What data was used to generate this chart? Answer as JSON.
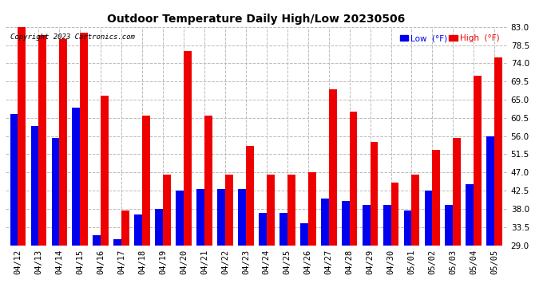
{
  "title": "Outdoor Temperature Daily High/Low 20230506",
  "copyright": "Copyright 2023 Cartronics.com",
  "legend_low": "Low  (°F)",
  "legend_high": "High  (°F)",
  "low_color": "#0000ee",
  "high_color": "#ee0000",
  "background_color": "#ffffff",
  "ymin": 29.0,
  "ymax": 83.0,
  "yticks": [
    29.0,
    33.5,
    38.0,
    42.5,
    47.0,
    51.5,
    56.0,
    60.5,
    65.0,
    69.5,
    74.0,
    78.5,
    83.0
  ],
  "grid_color": "#bbbbbb",
  "dates": [
    "04/12",
    "04/13",
    "04/14",
    "04/15",
    "04/16",
    "04/17",
    "04/18",
    "04/19",
    "04/20",
    "04/21",
    "04/22",
    "04/23",
    "04/24",
    "04/25",
    "04/26",
    "04/27",
    "04/28",
    "04/29",
    "04/30",
    "05/01",
    "05/02",
    "05/03",
    "05/04",
    "05/05"
  ],
  "highs": [
    83.0,
    81.0,
    80.0,
    81.5,
    66.0,
    37.5,
    61.0,
    46.5,
    77.0,
    61.0,
    46.5,
    53.5,
    46.5,
    46.5,
    47.0,
    67.5,
    62.0,
    54.5,
    44.5,
    46.5,
    52.5,
    55.5,
    71.0,
    75.5
  ],
  "lows": [
    61.5,
    58.5,
    55.5,
    63.0,
    31.5,
    30.5,
    36.5,
    38.0,
    42.5,
    43.0,
    43.0,
    43.0,
    37.0,
    37.0,
    34.5,
    40.5,
    40.0,
    39.0,
    39.0,
    37.5,
    42.5,
    39.0,
    44.0,
    56.0
  ]
}
